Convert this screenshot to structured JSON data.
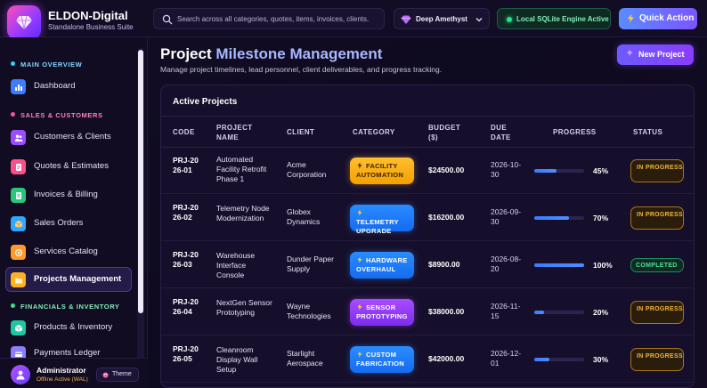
{
  "brand": {
    "title": "ELDON-Digital",
    "subtitle": "Standalone Business Suite"
  },
  "search": {
    "placeholder": "Search across all categories, quotes, items, invoices, clients."
  },
  "theme_select": {
    "value": "Deep Amethyst"
  },
  "engine_status": "Local SQLite Engine Active",
  "quick_action_label": "Quick Action",
  "sidebar": {
    "sections": [
      {
        "title": "MAIN OVERVIEW",
        "color": "#2fd0ff"
      },
      {
        "title": "SALES & CUSTOMERS",
        "color": "#ff4fa0"
      },
      {
        "title": "FINANCIALS & INVENTORY",
        "color": "#3ee08f"
      }
    ],
    "items": [
      {
        "label": "Dashboard",
        "icon": "dashboard-icon",
        "color": "#3d7bff"
      },
      {
        "label": "Customers & Clients",
        "icon": "users-icon",
        "color": "#9b4dff"
      },
      {
        "label": "Quotes & Estimates",
        "icon": "quote-icon",
        "color": "#ff4f8b"
      },
      {
        "label": "Invoices & Billing",
        "icon": "invoice-icon",
        "color": "#26c77a"
      },
      {
        "label": "Sales Orders",
        "icon": "box-icon",
        "color": "#2fa8ff"
      },
      {
        "label": "Services Catalog",
        "icon": "catalog-icon",
        "color": "#ff9a2a"
      },
      {
        "label": "Projects Management",
        "icon": "folder-icon",
        "color": "#ffb020"
      },
      {
        "label": "Products & Inventory",
        "icon": "inventory-icon",
        "color": "#1fc7a0"
      },
      {
        "label": "Payments Ledger",
        "icon": "ledger-icon",
        "color": "#8a7dff"
      }
    ],
    "user": {
      "name": "Administrator",
      "status": "Offline Active (WAL)",
      "theme_label": "Theme"
    }
  },
  "page": {
    "title_plain": "Project ",
    "title_accent": "Milestone Management",
    "subtitle": "Manage project timelines, lead personnel, client deliverables, and progress tracking.",
    "new_button": "New Project"
  },
  "panel": {
    "title": "Active Projects",
    "columns": [
      "CODE",
      "PROJECT NAME",
      "CLIENT",
      "CATEGORY",
      "BUDGET ($)",
      "DUE DATE",
      "PROGRESS",
      "STATUS"
    ],
    "rows": [
      {
        "code": "PRJ-2026-01",
        "name": "Automated Facility Retrofit Phase 1",
        "client": "Acme Corporation",
        "category": "FACILITY AUTOMATION",
        "category_color": "orange",
        "budget": "$24500.00",
        "due": "2026-10-30",
        "progress": 45,
        "progress_label": "45%",
        "status": "IN PROGRESS",
        "status_kind": "progress"
      },
      {
        "code": "PRJ-2026-02",
        "name": "Telemetry Node Modernization",
        "client": "Globex Dynamics",
        "category": "TELEMETRY UPGRADE",
        "category_color": "blue",
        "budget": "$16200.00",
        "due": "2026-09-30",
        "progress": 70,
        "progress_label": "70%",
        "status": "IN PROGRESS",
        "status_kind": "progress"
      },
      {
        "code": "PRJ-2026-03",
        "name": "Warehouse Interface Console",
        "client": "Dunder Paper Supply",
        "category": "HARDWARE OVERHAUL",
        "category_color": "blue",
        "budget": "$8900.00",
        "due": "2026-08-20",
        "progress": 100,
        "progress_label": "100%",
        "status": "COMPLETED",
        "status_kind": "done"
      },
      {
        "code": "PRJ-2026-04",
        "name": "NextGen Sensor Prototyping",
        "client": "Wayne Technologies",
        "category": "SENSOR PROTOTYPING",
        "category_color": "purple",
        "budget": "$38000.00",
        "due": "2026-11-15",
        "progress": 20,
        "progress_label": "20%",
        "status": "IN PROGRESS",
        "status_kind": "progress"
      },
      {
        "code": "PRJ-2026-05",
        "name": "Cleanroom Display Wall Setup",
        "client": "Starlight Aerospace",
        "category": "CUSTOM FABRICATION",
        "category_color": "blue",
        "budget": "$42000.00",
        "due": "2026-12-01",
        "progress": 30,
        "progress_label": "30%",
        "status": "IN PROGRESS",
        "status_kind": "progress"
      }
    ]
  }
}
